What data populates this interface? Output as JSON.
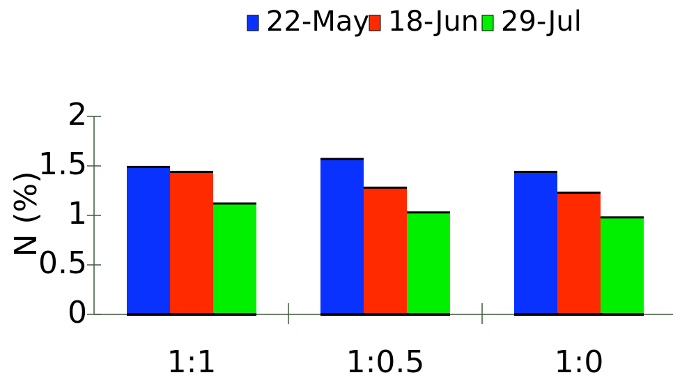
{
  "chart_data": {
    "type": "bar",
    "y_label": "N (%)",
    "categories": [
      "1:1",
      "1:0.5",
      "1:0"
    ],
    "series": [
      {
        "name": "22-May",
        "color": "#0a32ff",
        "values": [
          1.49,
          1.57,
          1.44
        ]
      },
      {
        "name": "18-Jun",
        "color": "#ff2a00",
        "values": [
          1.44,
          1.28,
          1.23
        ]
      },
      {
        "name": "29-Jul",
        "color": "#00f000",
        "values": [
          1.12,
          1.03,
          0.98
        ]
      }
    ],
    "ylim": [
      0,
      2
    ],
    "yticks": [
      0,
      0.5,
      1,
      1.5,
      2
    ],
    "legend": "top"
  }
}
